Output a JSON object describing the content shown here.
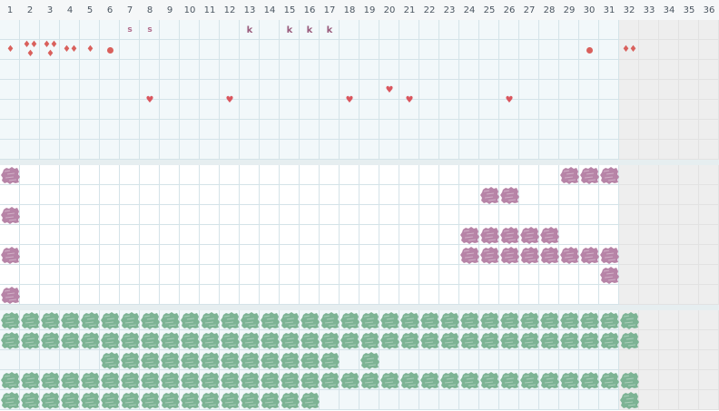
{
  "columns": [
    "1",
    "2",
    "3",
    "4",
    "5",
    "6",
    "7",
    "8",
    "9",
    "10",
    "11",
    "12",
    "13",
    "14",
    "15",
    "16",
    "17",
    "18",
    "19",
    "20",
    "21",
    "22",
    "23",
    "24",
    "25",
    "26",
    "27",
    "28",
    "29",
    "30",
    "31",
    "32",
    "33",
    "34",
    "35",
    "36"
  ],
  "colors": {
    "grid_line": "#d4e3e8",
    "section_a_bg": "#f2f8fa",
    "section_b_bg": "#ffffff",
    "section_c_bg": "#f2f8fa",
    "disabled_bg": "#eeeeee",
    "purple_blob": "#b784a7",
    "green_blob": "#7db394",
    "drop_red": "#d9605c",
    "heart_red": "#d9565e",
    "letter_color": "#b06a8a"
  },
  "disabled_from_column": 32,
  "section_a": {
    "letters": [
      {
        "col": 7,
        "row": 0,
        "text": "s"
      },
      {
        "col": 8,
        "row": 0,
        "text": "s"
      },
      {
        "col": 13,
        "row": 0,
        "text": "k"
      },
      {
        "col": 15,
        "row": 0,
        "text": "k"
      },
      {
        "col": 16,
        "row": 0,
        "text": "k"
      },
      {
        "col": 17,
        "row": 0,
        "text": "k"
      }
    ],
    "drops": [
      {
        "col": 1,
        "row": 1,
        "count": 1
      },
      {
        "col": 2,
        "row": 1,
        "count": 3
      },
      {
        "col": 3,
        "row": 1,
        "count": 3
      },
      {
        "col": 4,
        "row": 1,
        "count": 2
      },
      {
        "col": 5,
        "row": 1,
        "count": 1
      },
      {
        "col": 32,
        "row": 1,
        "count": 2
      }
    ],
    "dots": [
      {
        "col": 6,
        "row": 1
      },
      {
        "col": 30,
        "row": 1
      }
    ],
    "hearts": [
      {
        "col": 8,
        "row": 3.5
      },
      {
        "col": 12,
        "row": 3.5
      },
      {
        "col": 18,
        "row": 3.5
      },
      {
        "col": 20,
        "row": 3.0
      },
      {
        "col": 21,
        "row": 3.5
      },
      {
        "col": 26,
        "row": 3.5
      }
    ]
  },
  "section_b": {
    "purple_cells": [
      [
        1
      ],
      [
        25,
        26
      ],
      [
        1
      ],
      [
        24,
        25,
        26,
        27,
        28
      ],
      [
        1,
        24,
        25,
        26,
        27,
        28,
        29,
        30,
        31
      ],
      [
        31
      ],
      [
        1
      ]
    ],
    "purple_extra": [
      [
        29,
        30,
        31
      ]
    ]
  },
  "section_c": {
    "green_rows": [
      {
        "from": 1,
        "to": 32
      },
      {
        "from": 1,
        "to": 32
      },
      {
        "ranges": [
          [
            6,
            17
          ],
          [
            19,
            19
          ]
        ]
      },
      {
        "from": 1,
        "to": 32
      },
      {
        "ranges": [
          [
            1,
            16
          ],
          [
            32,
            32
          ]
        ]
      }
    ]
  }
}
